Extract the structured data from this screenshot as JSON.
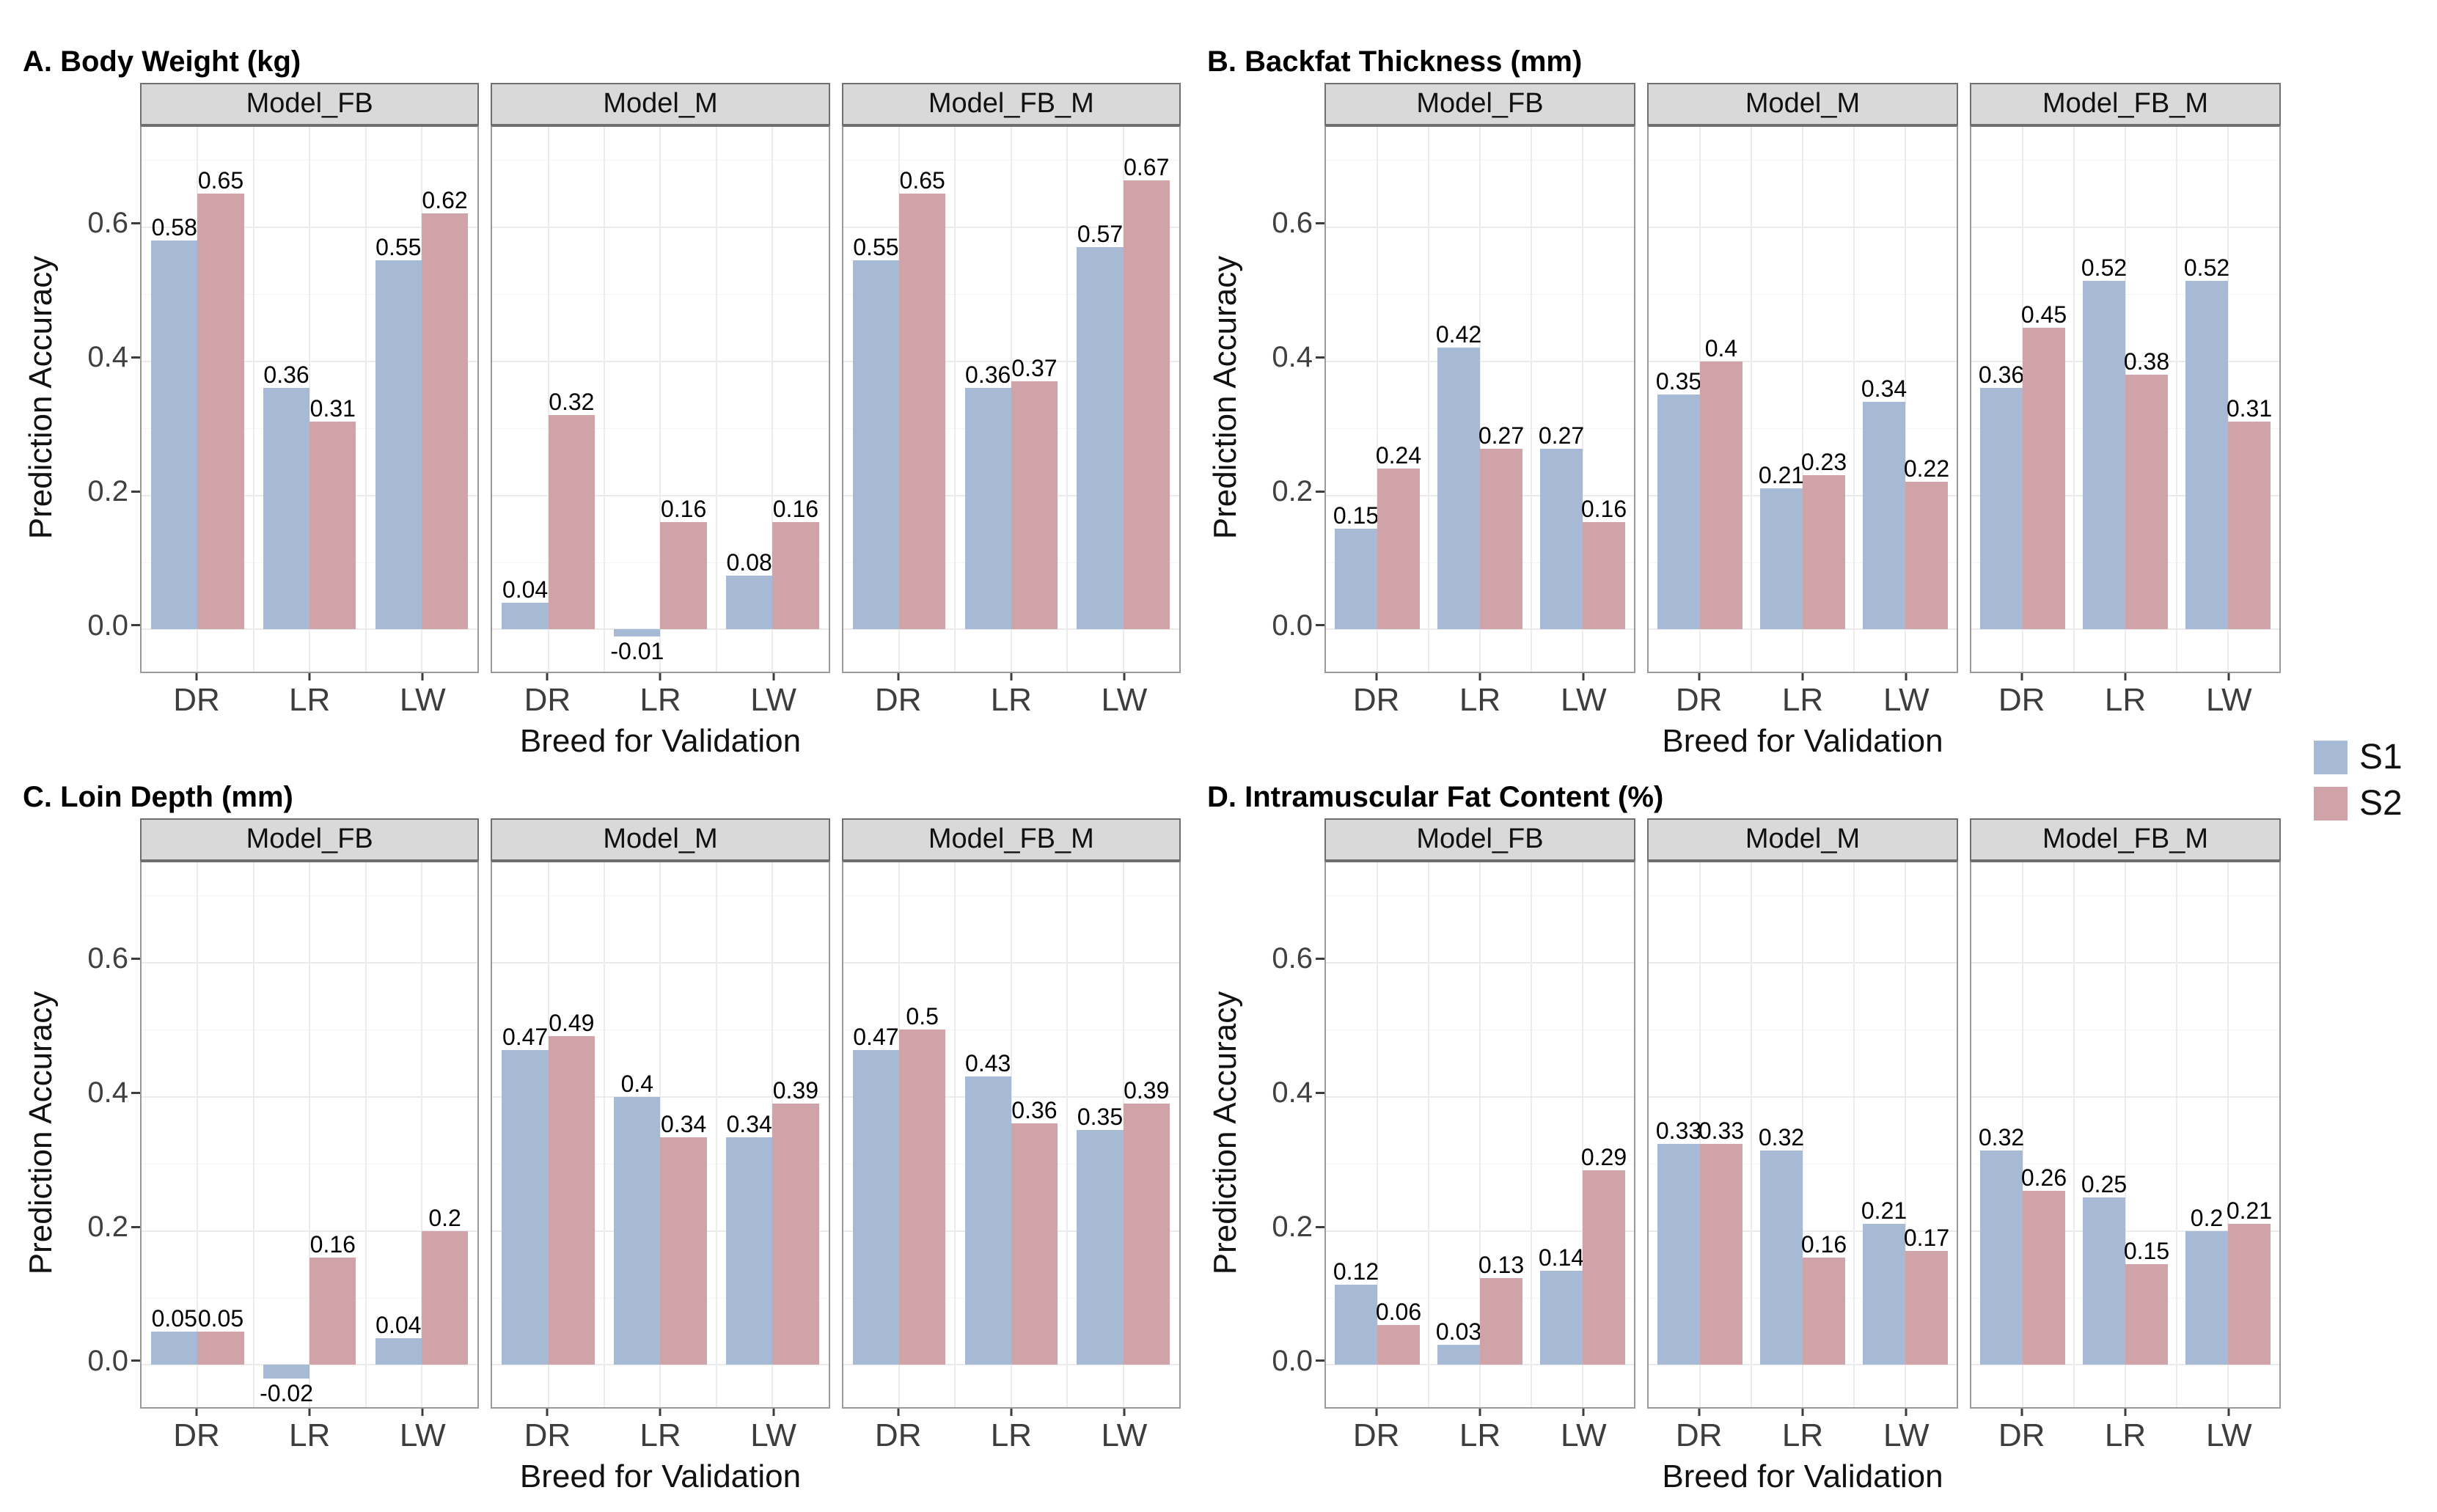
{
  "legend": {
    "items": [
      {
        "label": "S1",
        "color": "#a6bad5"
      },
      {
        "label": "S2",
        "color": "#d0a3a9"
      }
    ]
  },
  "axes": {
    "y_title": "Prediction Accuracy",
    "x_title": "Breed for Validation",
    "y_ticks": [
      0.0,
      0.2,
      0.4,
      0.6
    ],
    "y_minor_ticks": [
      0.1,
      0.3,
      0.5,
      0.7
    ],
    "categories": [
      "DR",
      "LR",
      "LW"
    ]
  },
  "chart_data": [
    {
      "type": "bar",
      "panel": "A",
      "title": "A. Body Weight (kg)",
      "xlabel": "Breed for Validation",
      "ylabel": "Prediction Accuracy",
      "ylim": [
        -0.07,
        0.75
      ],
      "y_ticks": [
        0.0,
        0.2,
        0.4,
        0.6
      ],
      "grid": true,
      "legend_position": "right",
      "categories": [
        "DR",
        "LR",
        "LW"
      ],
      "facets": [
        {
          "label": "Model_FB",
          "series": [
            {
              "name": "S1",
              "values": [
                0.58,
                0.36,
                0.55
              ]
            },
            {
              "name": "S2",
              "values": [
                0.65,
                0.31,
                0.62
              ]
            }
          ]
        },
        {
          "label": "Model_M",
          "series": [
            {
              "name": "S1",
              "values": [
                0.04,
                -0.01,
                0.08
              ]
            },
            {
              "name": "S2",
              "values": [
                0.32,
                0.16,
                0.16
              ]
            }
          ]
        },
        {
          "label": "Model_FB_M",
          "series": [
            {
              "name": "S1",
              "values": [
                0.55,
                0.36,
                0.57
              ]
            },
            {
              "name": "S2",
              "values": [
                0.65,
                0.37,
                0.67
              ]
            }
          ]
        }
      ]
    },
    {
      "type": "bar",
      "panel": "B",
      "title": "B. Backfat Thickness (mm)",
      "xlabel": "Breed for Validation",
      "ylabel": "Prediction Accuracy",
      "ylim": [
        -0.07,
        0.75
      ],
      "y_ticks": [
        0.0,
        0.2,
        0.4,
        0.6
      ],
      "grid": true,
      "legend_position": "right",
      "categories": [
        "DR",
        "LR",
        "LW"
      ],
      "facets": [
        {
          "label": "Model_FB",
          "series": [
            {
              "name": "S1",
              "values": [
                0.15,
                0.42,
                0.27
              ]
            },
            {
              "name": "S2",
              "values": [
                0.24,
                0.27,
                0.16
              ]
            }
          ]
        },
        {
          "label": "Model_M",
          "series": [
            {
              "name": "S1",
              "values": [
                0.35,
                0.21,
                0.34
              ]
            },
            {
              "name": "S2",
              "values": [
                0.4,
                0.23,
                0.22
              ]
            }
          ]
        },
        {
          "label": "Model_FB_M",
          "series": [
            {
              "name": "S1",
              "values": [
                0.36,
                0.52,
                0.52
              ]
            },
            {
              "name": "S2",
              "values": [
                0.45,
                0.38,
                0.31
              ]
            }
          ]
        }
      ]
    },
    {
      "type": "bar",
      "panel": "C",
      "title": "C. Loin Depth (mm)",
      "xlabel": "Breed for Validation",
      "ylabel": "Prediction Accuracy",
      "ylim": [
        -0.07,
        0.75
      ],
      "y_ticks": [
        0.0,
        0.2,
        0.4,
        0.6
      ],
      "grid": true,
      "legend_position": "right",
      "categories": [
        "DR",
        "LR",
        "LW"
      ],
      "facets": [
        {
          "label": "Model_FB",
          "series": [
            {
              "name": "S1",
              "values": [
                0.05,
                -0.02,
                0.04
              ]
            },
            {
              "name": "S2",
              "values": [
                0.05,
                0.16,
                0.2
              ]
            }
          ]
        },
        {
          "label": "Model_M",
          "series": [
            {
              "name": "S1",
              "values": [
                0.47,
                0.4,
                0.34
              ]
            },
            {
              "name": "S2",
              "values": [
                0.49,
                0.34,
                0.39
              ]
            }
          ]
        },
        {
          "label": "Model_FB_M",
          "series": [
            {
              "name": "S1",
              "values": [
                0.47,
                0.43,
                0.35
              ]
            },
            {
              "name": "S2",
              "values": [
                0.5,
                0.36,
                0.39
              ]
            }
          ]
        }
      ]
    },
    {
      "type": "bar",
      "panel": "D",
      "title": "D. Intramuscular Fat Content (%)",
      "xlabel": "Breed for Validation",
      "ylabel": "Prediction Accuracy",
      "ylim": [
        -0.07,
        0.75
      ],
      "y_ticks": [
        0.0,
        0.2,
        0.4,
        0.6
      ],
      "grid": true,
      "legend_position": "right",
      "categories": [
        "DR",
        "LR",
        "LW"
      ],
      "facets": [
        {
          "label": "Model_FB",
          "series": [
            {
              "name": "S1",
              "values": [
                0.12,
                0.03,
                0.14
              ]
            },
            {
              "name": "S2",
              "values": [
                0.06,
                0.13,
                0.29
              ]
            }
          ]
        },
        {
          "label": "Model_M",
          "series": [
            {
              "name": "S1",
              "values": [
                0.33,
                0.32,
                0.21
              ]
            },
            {
              "name": "S2",
              "values": [
                0.33,
                0.16,
                0.17
              ]
            }
          ]
        },
        {
          "label": "Model_FB_M",
          "series": [
            {
              "name": "S1",
              "values": [
                0.32,
                0.25,
                0.2
              ]
            },
            {
              "name": "S2",
              "values": [
                0.26,
                0.15,
                0.21
              ]
            }
          ]
        }
      ]
    }
  ]
}
